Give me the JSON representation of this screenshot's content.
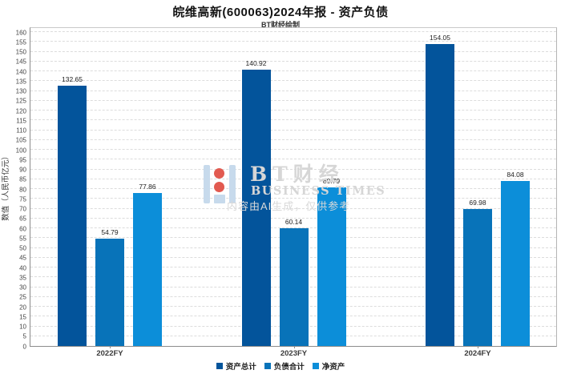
{
  "title": "皖维高新(600063)2024年报 - 资产负债",
  "subtitle": "BT财经绘制",
  "watermark": {
    "brand": "BT财经",
    "brand_sub": "BUSINESS TIMES",
    "disclaimer": "内容由AI生成，仅供参考"
  },
  "chart_data": {
    "type": "bar",
    "categories": [
      "2022FY",
      "2023FY",
      "2024FY"
    ],
    "series": [
      {
        "name": "资产总计",
        "color": "#03549b",
        "values": [
          132.65,
          140.92,
          154.05
        ]
      },
      {
        "name": "负债合计",
        "color": "#0873b9",
        "values": [
          54.79,
          60.14,
          69.98
        ]
      },
      {
        "name": "净资产",
        "color": "#0c8ed9",
        "values": [
          77.86,
          80.79,
          84.08
        ]
      }
    ],
    "ylabel": "数值（人民币亿元）",
    "ylim": [
      0,
      160
    ],
    "ytick_step": 5,
    "grid": true,
    "gridline_style": "dashed",
    "legend_position": "bottom"
  }
}
